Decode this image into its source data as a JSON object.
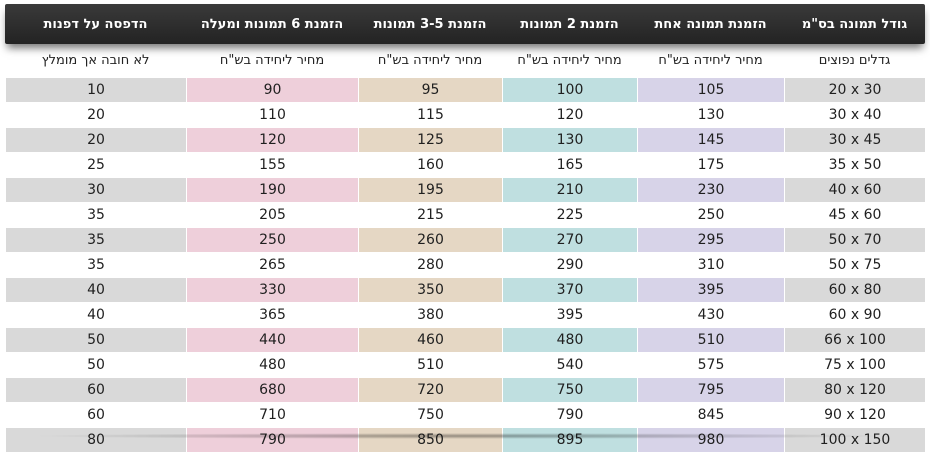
{
  "header": [
    "גודל תמונה בס\"מ",
    "הזמנת תמונה אחת",
    "הזמנת 2 תמונות",
    "הזמנת 3-5 תמונות",
    "הזמנת 6 תמונות ומעלה",
    "הדפסה על דפנות"
  ],
  "subheader": [
    "גדלים נפוצים",
    "מחיר ליחידה בש\"ח",
    "מחיר ליחידה בש\"ח",
    "מחיר ליחידה בש\"ח",
    "מחיר ליחידה בש\"ח",
    "לא חובה אך מומלץ"
  ],
  "rows": [
    [
      "20 x 30",
      "105",
      "100",
      "95",
      "90",
      "10"
    ],
    [
      "30 x 40",
      "130",
      "120",
      "115",
      "110",
      "20"
    ],
    [
      "30 x 45",
      "145",
      "130",
      "125",
      "120",
      "20"
    ],
    [
      "35 x 50",
      "175",
      "165",
      "160",
      "155",
      "25"
    ],
    [
      "40 x 60",
      "230",
      "210",
      "195",
      "190",
      "30"
    ],
    [
      "45 x 60",
      "250",
      "225",
      "215",
      "205",
      "35"
    ],
    [
      "50 x 70",
      "295",
      "270",
      "260",
      "250",
      "35"
    ],
    [
      "50 x 75",
      "310",
      "290",
      "280",
      "265",
      "35"
    ],
    [
      "60 x 80",
      "395",
      "370",
      "350",
      "330",
      "40"
    ],
    [
      "60 x 90",
      "430",
      "395",
      "380",
      "365",
      "40"
    ],
    [
      "66 x 100",
      "510",
      "480",
      "460",
      "440",
      "50"
    ],
    [
      "75 x 100",
      "575",
      "540",
      "510",
      "480",
      "50"
    ],
    [
      "80 x 120",
      "795",
      "750",
      "720",
      "680",
      "60"
    ],
    [
      "90 x 120",
      "845",
      "790",
      "750",
      "710",
      "60"
    ],
    [
      "100 x 150",
      "980",
      "895",
      "850",
      "790",
      "80"
    ]
  ]
}
